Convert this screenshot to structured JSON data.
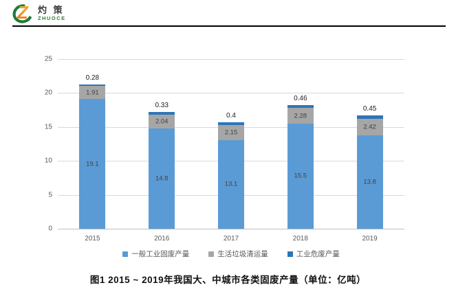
{
  "logo": {
    "brand_cn": "灼 策",
    "brand_en": "ZHUOCE",
    "colors": {
      "crescent_green": "#1e7a3e",
      "z_orange_top": "#f7b733",
      "z_orange_bottom": "#e87511",
      "text_dark": "#3a3a3a",
      "text_green": "#2e7d32"
    }
  },
  "chart_data": {
    "type": "bar",
    "stacked": true,
    "title": "",
    "xlabel": "",
    "ylabel": "",
    "categories": [
      "2015",
      "2016",
      "2017",
      "2018",
      "2019"
    ],
    "series": [
      {
        "name": "一般工业固废产量",
        "color": "#5b9bd5",
        "label_color": "#404040",
        "values": [
          19.1,
          14.8,
          13.1,
          15.5,
          13.8
        ]
      },
      {
        "name": "生活垃圾清运量",
        "color": "#a6a6a6",
        "label_color": "#404040",
        "values": [
          1.91,
          2.04,
          2.15,
          2.28,
          2.42
        ]
      },
      {
        "name": "工业危废产量",
        "color": "#2e75b6",
        "label_color": "#1a1a1a",
        "values": [
          0.28,
          0.33,
          0.4,
          0.46,
          0.45
        ],
        "labels_outside": true
      }
    ],
    "ylim": [
      0,
      25
    ],
    "yticks": [
      0,
      5,
      10,
      15,
      20,
      25
    ],
    "grid": true,
    "gridline_color": "#d9d9d9",
    "axis_line_color": "#bfbfbf",
    "tick_label_color": "#595959",
    "legend_position": "bottom"
  },
  "caption": {
    "text": "图1  2015 ~ 2019年我国大、中城市各类固废产量（单位：亿吨）"
  }
}
